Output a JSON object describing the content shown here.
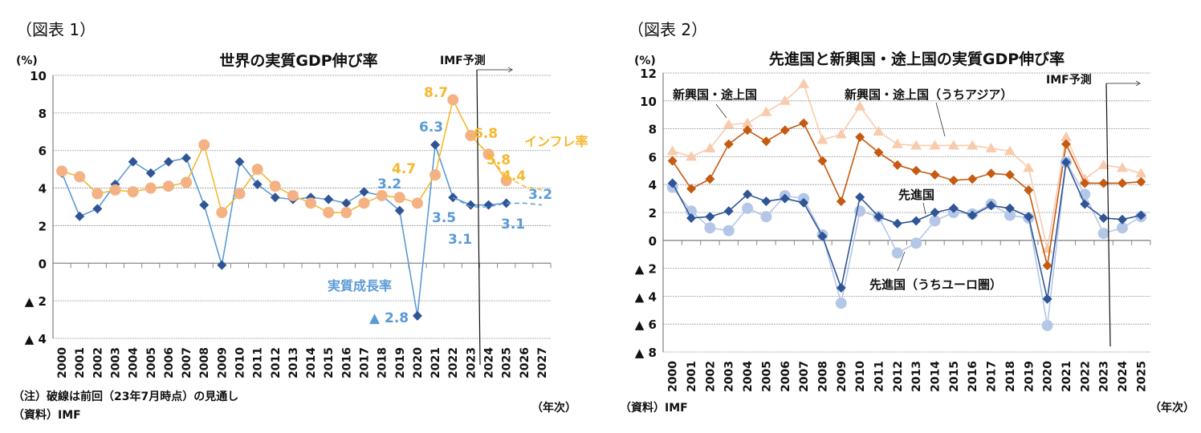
{
  "colors": {
    "growth": "#2f5597",
    "growth_line": "#5b9bd5",
    "inflation_marker": "#f4b183",
    "inflation_line": "#f5b82e",
    "em": "#c55a11",
    "asia": "#f8cbad",
    "adv": "#2f5597",
    "euro": "#b4c7e7",
    "label_blue": "#5b9bd5",
    "label_orange": "#f5b82e"
  },
  "chart_data": [
    {
      "type": "line",
      "figure_label": "（図表 1）",
      "title": "世界の実質GDP伸び率",
      "ylabel": "(%)",
      "xlabel": "（年次）",
      "ylim": [
        -4,
        10
      ],
      "yticks": [
        10,
        8,
        6,
        4,
        2,
        0,
        -2,
        -4
      ],
      "ytick_labels": [
        "10",
        "8",
        "6",
        "4",
        "2",
        "0",
        "▲ 2",
        "▲ 4"
      ],
      "grid": true,
      "categories": [
        "2000",
        "2001",
        "2002",
        "2003",
        "2004",
        "2005",
        "2006",
        "2007",
        "2008",
        "2009",
        "2010",
        "2011",
        "2012",
        "2013",
        "2014",
        "2015",
        "2016",
        "2017",
        "2018",
        "2019",
        "2020",
        "2021",
        "2022",
        "2023",
        "2024",
        "2025",
        "2026",
        "2027"
      ],
      "series": [
        {
          "name": "実質成長率",
          "marker": "diamond",
          "values": [
            4.8,
            2.5,
            2.9,
            4.2,
            5.4,
            4.8,
            5.4,
            5.6,
            3.1,
            -0.1,
            5.4,
            4.2,
            3.5,
            3.4,
            3.5,
            3.4,
            3.2,
            3.8,
            3.6,
            2.8,
            -2.8,
            6.3,
            3.5,
            3.1,
            3.1,
            3.2,
            null,
            null
          ]
        },
        {
          "name": "インフレ率",
          "marker": "circle",
          "values": [
            4.9,
            4.6,
            3.7,
            3.9,
            3.8,
            4.0,
            4.1,
            4.3,
            6.3,
            2.7,
            3.7,
            5.0,
            4.1,
            3.6,
            3.2,
            2.7,
            2.7,
            3.2,
            3.6,
            3.5,
            3.2,
            4.7,
            8.7,
            6.8,
            5.8,
            4.4,
            null,
            null
          ]
        },
        {
          "style": "dashed",
          "of": "実質成長率",
          "values": [
            null,
            null,
            null,
            null,
            null,
            null,
            null,
            null,
            null,
            null,
            null,
            null,
            null,
            null,
            null,
            null,
            null,
            null,
            null,
            null,
            null,
            null,
            3.5,
            3.0,
            3.0,
            3.2,
            3.2,
            3.1
          ]
        },
        {
          "style": "dashed",
          "of": "インフレ率",
          "values": [
            null,
            null,
            null,
            null,
            null,
            null,
            null,
            null,
            null,
            null,
            null,
            null,
            null,
            null,
            null,
            null,
            null,
            null,
            null,
            null,
            null,
            null,
            null,
            6.8,
            5.8,
            4.6,
            4.1,
            3.9
          ]
        }
      ],
      "data_labels": [
        "8.7",
        "6.8",
        "5.8",
        "4.4",
        "6.3",
        "4.7",
        "3.2",
        "3.5",
        "3.1",
        "3.1",
        "3.2",
        "▲ 2.8"
      ],
      "annotation": "IMF予測",
      "notes": [
        "（注）破線は前回（23年7月時点）の見通し",
        "（資料）IMF"
      ]
    },
    {
      "type": "line",
      "figure_label": "（図表 2）",
      "title": "先進国と新興国・途上国の実質GDP伸び率",
      "ylabel": "(%)",
      "xlabel": "（年次）",
      "ylim": [
        -8,
        12
      ],
      "yticks": [
        12,
        10,
        8,
        6,
        4,
        2,
        0,
        -2,
        -4,
        -6,
        -8
      ],
      "ytick_labels": [
        "12",
        "10",
        "8",
        "6",
        "4",
        "2",
        "0",
        "▲ 2",
        "▲ 4",
        "▲ 6",
        "▲ 8"
      ],
      "grid": true,
      "categories": [
        "2000",
        "2001",
        "2002",
        "2003",
        "2004",
        "2005",
        "2006",
        "2007",
        "2008",
        "2009",
        "2010",
        "2011",
        "2012",
        "2013",
        "2014",
        "2015",
        "2016",
        "2017",
        "2018",
        "2019",
        "2020",
        "2021",
        "2022",
        "2023",
        "2024",
        "2025"
      ],
      "series": [
        {
          "name": "新興国・途上国（うちアジア）",
          "marker": "triangle",
          "values": [
            6.4,
            6.0,
            6.6,
            8.3,
            8.4,
            9.2,
            10.0,
            11.2,
            7.2,
            7.6,
            9.6,
            7.8,
            6.9,
            6.8,
            6.8,
            6.8,
            6.8,
            6.6,
            6.4,
            5.2,
            -0.6,
            7.4,
            4.4,
            5.4,
            5.2,
            4.8
          ]
        },
        {
          "name": "新興国・途上国",
          "marker": "diamond",
          "values": [
            5.7,
            3.7,
            4.4,
            6.9,
            7.9,
            7.1,
            7.9,
            8.4,
            5.7,
            2.8,
            7.4,
            6.3,
            5.4,
            5.0,
            4.7,
            4.3,
            4.4,
            4.8,
            4.7,
            3.6,
            -1.8,
            6.9,
            4.1,
            4.1,
            4.1,
            4.2
          ]
        },
        {
          "name": "先進国（うちユーロ圏）",
          "marker": "circle",
          "values": [
            3.8,
            2.1,
            0.9,
            0.7,
            2.3,
            1.7,
            3.2,
            3.0,
            0.4,
            -4.5,
            2.1,
            1.7,
            -0.9,
            -0.2,
            1.4,
            2.0,
            1.9,
            2.6,
            1.8,
            1.6,
            -6.1,
            5.6,
            3.3,
            0.5,
            0.9,
            1.7
          ]
        },
        {
          "name": "先進国",
          "marker": "diamond",
          "values": [
            4.1,
            1.6,
            1.7,
            2.1,
            3.3,
            2.8,
            3.0,
            2.7,
            0.3,
            -3.4,
            3.1,
            1.7,
            1.2,
            1.4,
            2.0,
            2.3,
            1.8,
            2.5,
            2.3,
            1.7,
            -4.2,
            5.6,
            2.6,
            1.6,
            1.5,
            1.8
          ]
        }
      ],
      "annotation": "IMF予測",
      "notes": [
        "（資料）IMF"
      ]
    }
  ]
}
